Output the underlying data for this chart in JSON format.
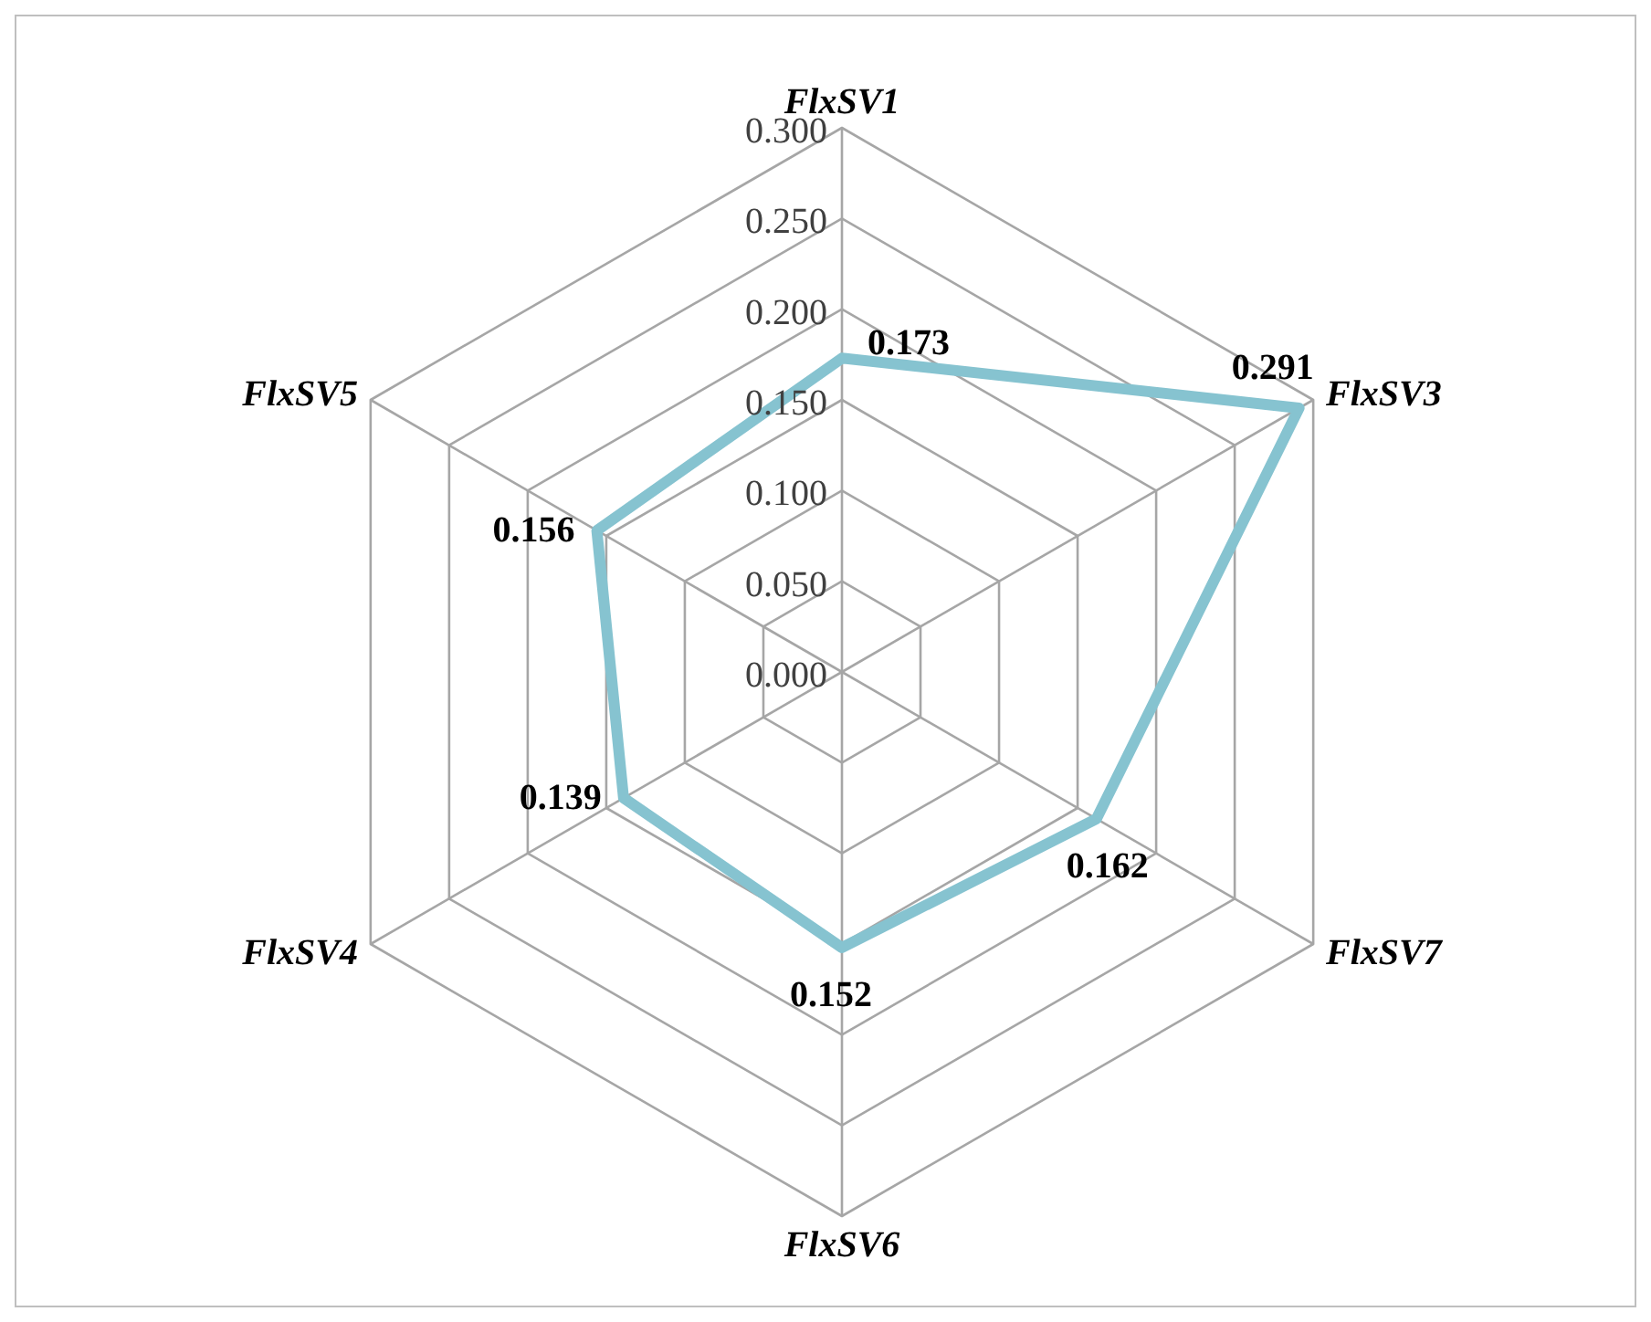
{
  "chart_data": {
    "type": "radar",
    "categories": [
      "FlxSV1",
      "FlxSV3",
      "FlxSV7",
      "FlxSV6",
      "FlxSV4",
      "FlxSV5"
    ],
    "series": [
      {
        "color": "#86c3d0",
        "values": [
          0.173,
          0.291,
          0.162,
          0.152,
          0.139,
          0.156
        ]
      }
    ],
    "ylim": [
      0,
      0.3
    ],
    "yticks": [
      {
        "value": 0,
        "label": "0.000"
      },
      {
        "value": 0.05,
        "label": "0.050"
      },
      {
        "value": 0.1,
        "label": "0.100"
      },
      {
        "value": 0.15,
        "label": "0.150"
      },
      {
        "value": 0.2,
        "label": "0.200"
      },
      {
        "value": 0.25,
        "label": "0.250"
      },
      {
        "value": 0.3,
        "label": "0.300"
      }
    ],
    "grid": true,
    "data_labels": true
  }
}
